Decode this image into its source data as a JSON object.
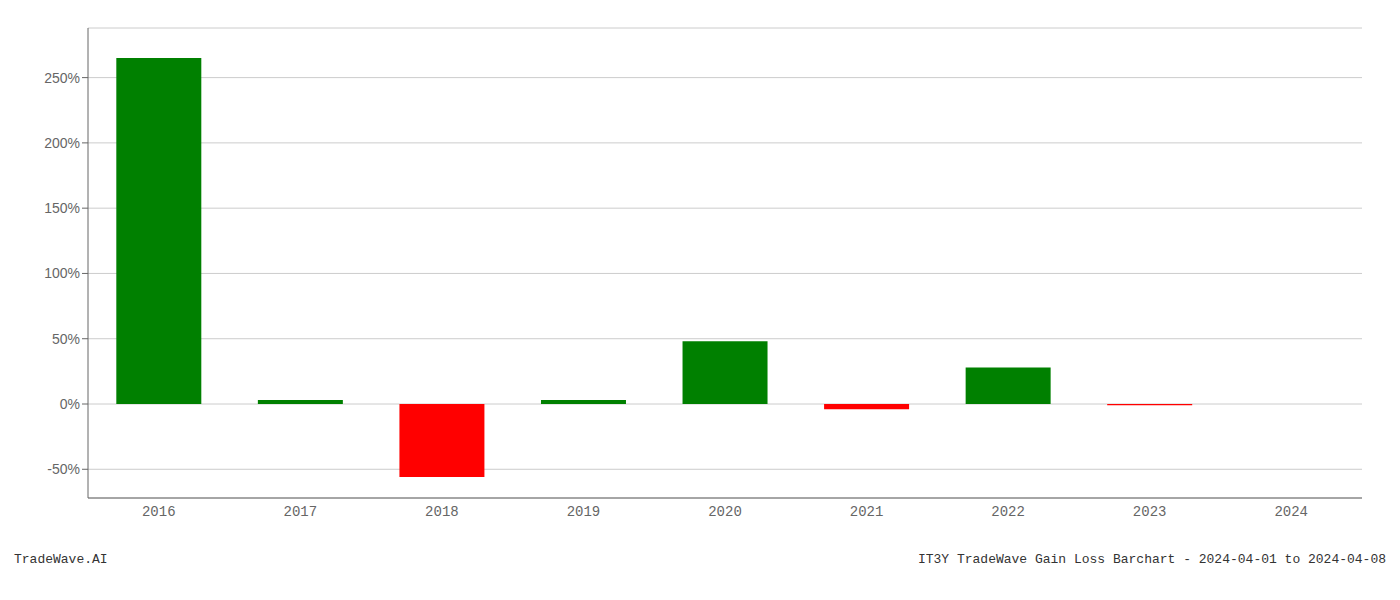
{
  "chart_data": {
    "type": "bar",
    "categories": [
      "2016",
      "2017",
      "2018",
      "2019",
      "2020",
      "2021",
      "2022",
      "2023",
      "2024"
    ],
    "values": [
      2.65,
      0.03,
      -0.56,
      0.03,
      0.48,
      -0.04,
      0.28,
      -0.01,
      0.0
    ],
    "colors": [
      "#008000",
      "#008000",
      "#ff0000",
      "#008000",
      "#008000",
      "#ff0000",
      "#008000",
      "#ff0000",
      "#008000"
    ],
    "ylim": [
      -0.72,
      2.88
    ],
    "yticks": [
      {
        "value": -0.5,
        "label": "-50%"
      },
      {
        "value": 0.0,
        "label": "0%"
      },
      {
        "value": 0.5,
        "label": "50%"
      },
      {
        "value": 1.0,
        "label": "100%"
      },
      {
        "value": 1.5,
        "label": "150%"
      },
      {
        "value": 2.0,
        "label": "200%"
      },
      {
        "value": 2.5,
        "label": "250%"
      }
    ],
    "grid": true,
    "annotations": [
      "TradeWave.AI",
      "IT3Y TradeWave Gain Loss Barchart - 2024-04-01 to 2024-04-08"
    ]
  }
}
